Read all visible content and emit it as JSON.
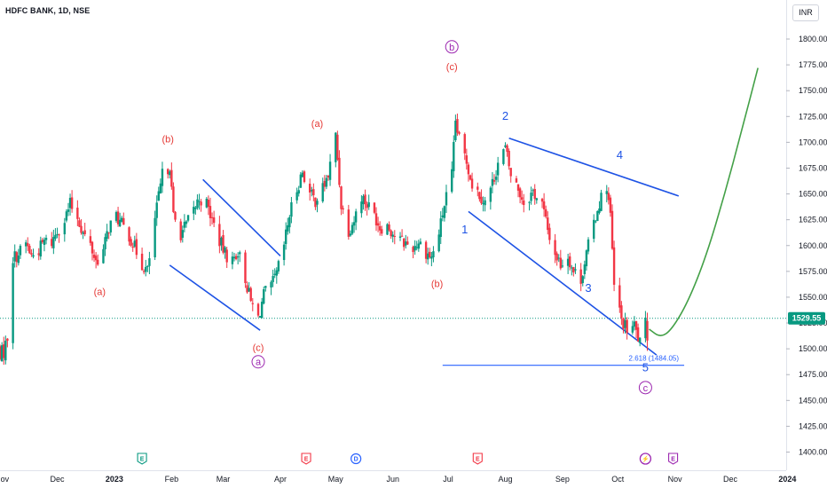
{
  "header": {
    "symbol_title": "HDFC BANK, 1D, NSE",
    "currency": "INR"
  },
  "colors": {
    "up": "#089981",
    "down": "#f23645",
    "wave_blue": "#1e53e5",
    "wave_red": "#e53935",
    "wave_purple": "#9c27b0",
    "projection": "#43a047",
    "current_price_line": "#089981",
    "fib_line": "#2962ff"
  },
  "chart_data": {
    "type": "candlestick",
    "y_axis": {
      "ticks": [
        1400,
        1425,
        1450,
        1475,
        1500,
        1525,
        1550,
        1575,
        1600,
        1625,
        1650,
        1675,
        1700,
        1725,
        1750,
        1775,
        1800
      ],
      "tick_labels": [
        "1400.00",
        "1425.00",
        "1450.00",
        "1475.00",
        "1500.00",
        "1525.00",
        "1550.00",
        "1575.00",
        "1600.00",
        "1625.00",
        "1650.00",
        "1675.00",
        "1700.00",
        "1725.00",
        "1750.00",
        "1775.00",
        "1800.00"
      ],
      "range": [
        1395,
        1830
      ]
    },
    "x_axis": {
      "tick_labels": [
        "Nov",
        "Dec",
        "2023",
        "Feb",
        "Mar",
        "Apr",
        "May",
        "Jun",
        "Jul",
        "Aug",
        "Sep",
        "Oct",
        "Nov",
        "Dec",
        "2024"
      ],
      "range": [
        "2022-10-25",
        "2024-01-08"
      ]
    },
    "current_price": {
      "value": 1529.55,
      "label": "1529.55"
    },
    "closes": [
      [
        "2022-10-27",
        1498
      ],
      [
        "2022-10-31",
        1496
      ],
      [
        "2022-11-02",
        1497
      ],
      [
        "2022-11-04",
        1512
      ],
      [
        "2022-11-07",
        1588
      ],
      [
        "2022-11-10",
        1592
      ],
      [
        "2022-11-14",
        1602
      ],
      [
        "2022-11-17",
        1590
      ],
      [
        "2022-11-21",
        1596
      ],
      [
        "2022-11-24",
        1604
      ],
      [
        "2022-11-28",
        1603
      ],
      [
        "2022-12-01",
        1615
      ],
      [
        "2022-12-05",
        1625
      ],
      [
        "2022-12-08",
        1640
      ],
      [
        "2022-12-12",
        1628
      ],
      [
        "2022-12-15",
        1612
      ],
      [
        "2022-12-19",
        1600
      ],
      [
        "2022-12-22",
        1585
      ],
      [
        "2022-12-26",
        1595
      ],
      [
        "2022-12-29",
        1618
      ],
      [
        "2023-01-02",
        1628
      ],
      [
        "2023-01-05",
        1620
      ],
      [
        "2023-01-09",
        1610
      ],
      [
        "2023-01-12",
        1598
      ],
      [
        "2023-01-16",
        1582
      ],
      [
        "2023-01-19",
        1575
      ],
      [
        "2023-01-23",
        1625
      ],
      [
        "2023-01-27",
        1668
      ],
      [
        "2023-01-31",
        1678
      ],
      [
        "2023-02-02",
        1628
      ],
      [
        "2023-02-06",
        1612
      ],
      [
        "2023-02-09",
        1620
      ],
      [
        "2023-02-13",
        1634
      ],
      [
        "2023-02-16",
        1646
      ],
      [
        "2023-02-20",
        1640
      ],
      [
        "2023-02-23",
        1625
      ],
      [
        "2023-02-27",
        1605
      ],
      [
        "2023-03-02",
        1592
      ],
      [
        "2023-03-06",
        1585
      ],
      [
        "2023-03-09",
        1595
      ],
      [
        "2023-03-13",
        1568
      ],
      [
        "2023-03-16",
        1545
      ],
      [
        "2023-03-20",
        1530
      ],
      [
        "2023-03-23",
        1552
      ],
      [
        "2023-03-27",
        1560
      ],
      [
        "2023-03-30",
        1572
      ],
      [
        "2023-04-03",
        1600
      ],
      [
        "2023-04-06",
        1630
      ],
      [
        "2023-04-10",
        1655
      ],
      [
        "2023-04-13",
        1672
      ],
      [
        "2023-04-17",
        1650
      ],
      [
        "2023-04-20",
        1644
      ],
      [
        "2023-04-24",
        1655
      ],
      [
        "2023-04-27",
        1668
      ],
      [
        "2023-05-01",
        1706
      ],
      [
        "2023-05-04",
        1640
      ],
      [
        "2023-05-08",
        1615
      ],
      [
        "2023-05-11",
        1625
      ],
      [
        "2023-05-15",
        1648
      ],
      [
        "2023-05-18",
        1640
      ],
      [
        "2023-05-22",
        1630
      ],
      [
        "2023-05-25",
        1618
      ],
      [
        "2023-05-29",
        1620
      ],
      [
        "2023-06-01",
        1612
      ],
      [
        "2023-06-05",
        1605
      ],
      [
        "2023-06-08",
        1602
      ],
      [
        "2023-06-12",
        1598
      ],
      [
        "2023-06-15",
        1604
      ],
      [
        "2023-06-19",
        1594
      ],
      [
        "2023-06-22",
        1588
      ],
      [
        "2023-06-26",
        1612
      ],
      [
        "2023-06-29",
        1640
      ],
      [
        "2023-07-03",
        1668
      ],
      [
        "2023-07-05",
        1720
      ],
      [
        "2023-07-07",
        1702
      ],
      [
        "2023-07-11",
        1682
      ],
      [
        "2023-07-14",
        1660
      ],
      [
        "2023-07-18",
        1650
      ],
      [
        "2023-07-21",
        1642
      ],
      [
        "2023-07-25",
        1660
      ],
      [
        "2023-07-28",
        1680
      ],
      [
        "2023-08-01",
        1694
      ],
      [
        "2023-08-04",
        1668
      ],
      [
        "2023-08-08",
        1655
      ],
      [
        "2023-08-11",
        1642
      ],
      [
        "2023-08-16",
        1652
      ],
      [
        "2023-08-21",
        1640
      ],
      [
        "2023-08-24",
        1615
      ],
      [
        "2023-08-28",
        1592
      ],
      [
        "2023-08-31",
        1582
      ],
      [
        "2023-09-04",
        1590
      ],
      [
        "2023-09-07",
        1575
      ],
      [
        "2023-09-11",
        1568
      ],
      [
        "2023-09-14",
        1592
      ],
      [
        "2023-09-18",
        1622
      ],
      [
        "2023-09-21",
        1642
      ],
      [
        "2023-09-25",
        1658
      ],
      [
        "2023-09-27",
        1628
      ],
      [
        "2023-09-29",
        1560
      ],
      [
        "2023-10-03",
        1528
      ],
      [
        "2023-10-06",
        1518
      ],
      [
        "2023-10-10",
        1522
      ],
      [
        "2023-10-13",
        1505
      ],
      [
        "2023-10-17",
        1529.55
      ]
    ],
    "fib_level": {
      "label": "2.618 (1484.05)",
      "value": 1484.05,
      "x_start": "2023-06-28",
      "x_end": "2023-11-06"
    },
    "trendlines": [
      {
        "from": [
          "2023-01-31",
          1581
        ],
        "to": [
          "2023-03-21",
          1518
        ]
      },
      {
        "from": [
          "2023-02-18",
          1664
        ],
        "to": [
          "2023-04-01",
          1590
        ]
      },
      {
        "from": [
          "2023-07-12",
          1633
        ],
        "to": [
          "2023-10-22",
          1494
        ]
      },
      {
        "from": [
          "2023-08-03",
          1704
        ],
        "to": [
          "2023-11-03",
          1648
        ]
      }
    ],
    "projection": [
      [
        "2023-10-18",
        1519
      ],
      [
        "2023-10-24",
        1511
      ],
      [
        "2023-10-30",
        1518
      ],
      [
        "2023-11-08",
        1545
      ],
      [
        "2023-11-18",
        1590
      ],
      [
        "2023-11-28",
        1650
      ],
      [
        "2023-12-07",
        1710
      ],
      [
        "2023-12-16",
        1772
      ]
    ],
    "wave_labels": [
      {
        "text": "(a)",
        "date": "2022-12-24",
        "price": 1552,
        "color": "red"
      },
      {
        "text": "(b)",
        "date": "2023-01-30",
        "price": 1700,
        "color": "red"
      },
      {
        "text": "(c)",
        "date": "2023-03-20",
        "price": 1498,
        "color": "red"
      },
      {
        "text": "a",
        "date": "2023-03-20",
        "price": 1484,
        "color": "purple_circle"
      },
      {
        "text": "(a)",
        "date": "2023-04-21",
        "price": 1715,
        "color": "red"
      },
      {
        "text": "(b)",
        "date": "2023-06-25",
        "price": 1560,
        "color": "red"
      },
      {
        "text": "b",
        "date": "2023-07-03",
        "price": 1789,
        "color": "purple_circle"
      },
      {
        "text": "(c)",
        "date": "2023-07-03",
        "price": 1770,
        "color": "red"
      },
      {
        "text": "1",
        "date": "2023-07-10",
        "price": 1612,
        "color": "blue"
      },
      {
        "text": "2",
        "date": "2023-08-01",
        "price": 1722,
        "color": "blue"
      },
      {
        "text": "3",
        "date": "2023-09-15",
        "price": 1555,
        "color": "blue"
      },
      {
        "text": "4",
        "date": "2023-10-02",
        "price": 1684,
        "color": "blue"
      },
      {
        "text": "5",
        "date": "2023-10-16",
        "price": 1478,
        "color": "blue"
      },
      {
        "text": "c",
        "date": "2023-10-16",
        "price": 1459,
        "color": "purple_circle"
      }
    ]
  },
  "events": [
    {
      "glyph": "E",
      "date": "2023-01-16",
      "color": "#089981",
      "filled": false
    },
    {
      "glyph": "E",
      "date": "2023-04-15",
      "color": "#f23645",
      "filled": false
    },
    {
      "glyph": "D",
      "date": "2023-05-12",
      "color": "#2962ff",
      "filled": false
    },
    {
      "glyph": "E",
      "date": "2023-07-17",
      "color": "#f23645",
      "filled": false
    },
    {
      "glyph": "⚡",
      "date": "2023-10-16",
      "color": "#9c27b0",
      "filled": true
    },
    {
      "glyph": "E",
      "date": "2023-10-31",
      "color": "#9c27b0",
      "filled": false
    }
  ]
}
